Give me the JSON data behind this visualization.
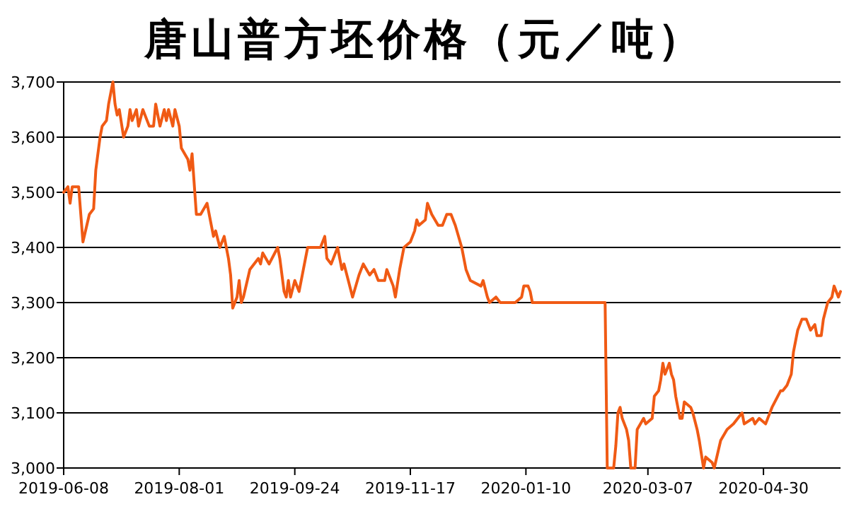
{
  "chart_data": {
    "type": "line",
    "title": "唐山普方坯价格（元／吨）",
    "x": [
      "2019-06-08",
      "2019-06-10",
      "2019-06-11",
      "2019-06-12",
      "2019-06-15",
      "2019-06-16",
      "2019-06-17",
      "2019-06-20",
      "2019-06-22",
      "2019-06-23",
      "2019-06-25",
      "2019-06-26",
      "2019-06-28",
      "2019-06-29",
      "2019-07-01",
      "2019-07-02",
      "2019-07-03",
      "2019-07-04",
      "2019-07-06",
      "2019-07-08",
      "2019-07-09",
      "2019-07-10",
      "2019-07-12",
      "2019-07-13",
      "2019-07-15",
      "2019-07-18",
      "2019-07-20",
      "2019-07-21",
      "2019-07-23",
      "2019-07-25",
      "2019-07-26",
      "2019-07-27",
      "2019-07-29",
      "2019-07-30",
      "2019-08-01",
      "2019-08-02",
      "2019-08-05",
      "2019-08-06",
      "2019-08-07",
      "2019-08-09",
      "2019-08-11",
      "2019-08-14",
      "2019-08-17",
      "2019-08-18",
      "2019-08-20",
      "2019-08-22",
      "2019-08-24",
      "2019-08-25",
      "2019-08-26",
      "2019-08-28",
      "2019-08-29",
      "2019-08-30",
      "2019-08-31",
      "2019-09-03",
      "2019-09-07",
      "2019-09-08",
      "2019-09-09",
      "2019-09-12",
      "2019-09-16",
      "2019-09-17",
      "2019-09-19",
      "2019-09-20",
      "2019-09-21",
      "2019-09-22",
      "2019-09-24",
      "2019-09-26",
      "2019-09-28",
      "2019-09-30",
      "2019-10-06",
      "2019-10-08",
      "2019-10-09",
      "2019-10-11",
      "2019-10-13",
      "2019-10-14",
      "2019-10-16",
      "2019-10-17",
      "2019-10-19",
      "2019-10-21",
      "2019-10-24",
      "2019-10-26",
      "2019-10-29",
      "2019-10-31",
      "2019-11-02",
      "2019-11-05",
      "2019-11-06",
      "2019-11-09",
      "2019-11-10",
      "2019-11-12",
      "2019-11-14",
      "2019-11-17",
      "2019-11-19",
      "2019-11-20",
      "2019-11-21",
      "2019-11-24",
      "2019-11-25",
      "2019-11-27",
      "2019-11-30",
      "2019-12-02",
      "2019-12-04",
      "2019-12-06",
      "2019-12-08",
      "2019-12-11",
      "2019-12-13",
      "2019-12-15",
      "2019-12-20",
      "2019-12-21",
      "2019-12-23",
      "2019-12-24",
      "2019-12-27",
      "2019-12-29",
      "2020-01-05",
      "2020-01-08",
      "2020-01-09",
      "2020-01-11",
      "2020-01-12",
      "2020-01-13",
      "2020-02-16",
      "2020-02-17",
      "2020-02-20",
      "2020-02-21",
      "2020-02-22",
      "2020-02-23",
      "2020-02-24",
      "2020-02-26",
      "2020-02-27",
      "2020-02-28",
      "2020-03-01",
      "2020-03-02",
      "2020-03-05",
      "2020-03-06",
      "2020-03-09",
      "2020-03-10",
      "2020-03-12",
      "2020-03-13",
      "2020-03-14",
      "2020-03-15",
      "2020-03-17",
      "2020-03-18",
      "2020-03-19",
      "2020-03-20",
      "2020-03-22",
      "2020-03-23",
      "2020-03-24",
      "2020-03-27",
      "2020-03-28",
      "2020-03-30",
      "2020-03-31",
      "2020-04-02",
      "2020-04-03",
      "2020-04-06",
      "2020-04-07",
      "2020-04-10",
      "2020-04-13",
      "2020-04-16",
      "2020-04-20",
      "2020-04-21",
      "2020-04-25",
      "2020-04-26",
      "2020-04-28",
      "2020-05-01",
      "2020-05-04",
      "2020-05-08",
      "2020-05-09",
      "2020-05-11",
      "2020-05-13",
      "2020-05-14",
      "2020-05-16",
      "2020-05-18",
      "2020-05-20",
      "2020-05-22",
      "2020-05-24",
      "2020-05-25",
      "2020-05-27",
      "2020-05-28",
      "2020-05-30",
      "2020-06-01",
      "2020-06-02",
      "2020-06-03",
      "2020-06-04",
      "2020-06-05"
    ],
    "series": [
      {
        "color": "#f05a14",
        "values": [
          3500,
          3510,
          3480,
          3510,
          3510,
          3460,
          3410,
          3460,
          3470,
          3540,
          3600,
          3620,
          3630,
          3660,
          3700,
          3660,
          3640,
          3650,
          3600,
          3620,
          3650,
          3630,
          3650,
          3620,
          3650,
          3620,
          3620,
          3660,
          3620,
          3650,
          3630,
          3650,
          3620,
          3650,
          3620,
          3580,
          3560,
          3540,
          3570,
          3460,
          3460,
          3480,
          3420,
          3430,
          3400,
          3420,
          3380,
          3350,
          3290,
          3310,
          3340,
          3300,
          3310,
          3360,
          3380,
          3370,
          3390,
          3370,
          3400,
          3380,
          3320,
          3310,
          3340,
          3310,
          3340,
          3320,
          3360,
          3400,
          3400,
          3420,
          3380,
          3370,
          3390,
          3400,
          3360,
          3370,
          3340,
          3310,
          3350,
          3370,
          3350,
          3360,
          3340,
          3340,
          3360,
          3330,
          3310,
          3360,
          3400,
          3410,
          3430,
          3450,
          3440,
          3450,
          3480,
          3460,
          3440,
          3440,
          3460,
          3460,
          3440,
          3400,
          3360,
          3340,
          3330,
          3340,
          3310,
          3300,
          3310,
          3300,
          3300,
          3310,
          3330,
          3330,
          3320,
          3300,
          3300,
          3000,
          3000,
          3040,
          3100,
          3110,
          3090,
          3070,
          3050,
          3000,
          3000,
          3070,
          3090,
          3080,
          3090,
          3130,
          3140,
          3160,
          3190,
          3170,
          3190,
          3170,
          3160,
          3130,
          3090,
          3090,
          3120,
          3110,
          3100,
          3070,
          3050,
          3000,
          3020,
          3010,
          3000,
          3050,
          3070,
          3080,
          3100,
          3080,
          3090,
          3080,
          3090,
          3080,
          3110,
          3140,
          3140,
          3150,
          3170,
          3210,
          3250,
          3270,
          3270,
          3250,
          3260,
          3240,
          3240,
          3270,
          3300,
          3310,
          3330,
          3320,
          3310,
          3320
        ]
      }
    ],
    "xlim": [
      "2019-06-08",
      "2020-06-05"
    ],
    "xticks": [
      "2019-06-08",
      "2019-08-01",
      "2019-09-24",
      "2019-11-17",
      "2020-01-10",
      "2020-03-07",
      "2020-04-30"
    ],
    "ylim": [
      3000,
      3700
    ],
    "yticks": [
      {
        "value": 3000,
        "label": "3,000"
      },
      {
        "value": 3100,
        "label": "3,100"
      },
      {
        "value": 3200,
        "label": "3,200"
      },
      {
        "value": 3300,
        "label": "3,300"
      },
      {
        "value": 3400,
        "label": "3,400"
      },
      {
        "value": 3500,
        "label": "3,500"
      },
      {
        "value": 3600,
        "label": "3,600"
      },
      {
        "value": 3700,
        "label": "3,700"
      }
    ],
    "grid": "y"
  }
}
